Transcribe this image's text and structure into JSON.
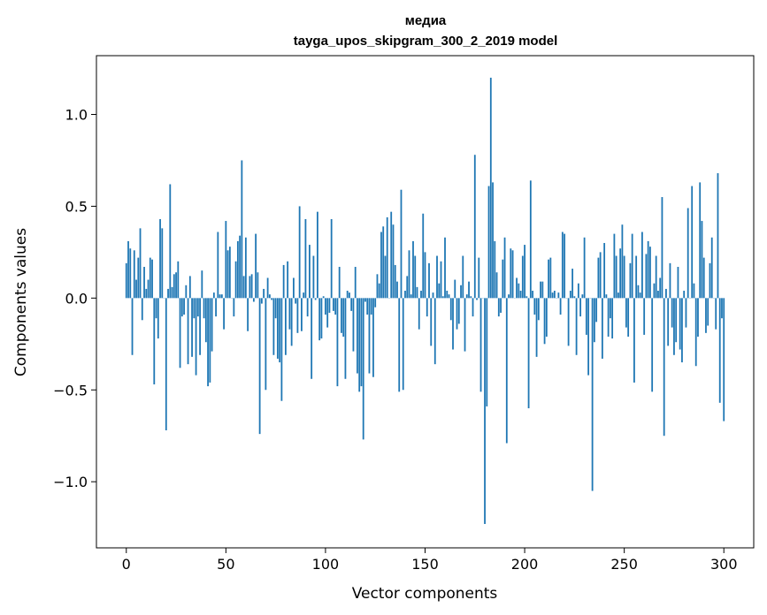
{
  "chart_data": {
    "type": "bar",
    "title": "медиа",
    "subtitle": "tayga_upos_skipgram_300_2_2019 model",
    "xlabel": "Vector components",
    "ylabel": "Components values",
    "xlim": [
      -15,
      315
    ],
    "ylim": [
      -1.36,
      1.32
    ],
    "xticks": [
      0,
      50,
      100,
      150,
      200,
      250,
      300
    ],
    "xtick_labels": [
      "0",
      "50",
      "100",
      "150",
      "200",
      "250",
      "300"
    ],
    "yticks": [
      -1.0,
      -0.5,
      0.0,
      0.5,
      1.0
    ],
    "ytick_labels": [
      "−1.0",
      "−0.5",
      "0.0",
      "0.5",
      "1.0"
    ],
    "grid": false,
    "bar_color": "#1f77b4",
    "values": [
      0.19,
      0.31,
      0.27,
      -0.31,
      0.26,
      0.1,
      0.22,
      0.38,
      -0.12,
      0.17,
      0.05,
      0.1,
      0.22,
      0.21,
      -0.47,
      -0.11,
      -0.22,
      0.43,
      0.38,
      0.0,
      -0.72,
      0.05,
      0.62,
      0.06,
      0.13,
      0.14,
      0.2,
      -0.38,
      -0.1,
      -0.09,
      0.07,
      -0.36,
      0.12,
      -0.32,
      -0.11,
      -0.42,
      -0.1,
      -0.31,
      0.15,
      -0.11,
      -0.24,
      -0.48,
      -0.46,
      -0.29,
      0.03,
      -0.1,
      0.36,
      0.02,
      0.02,
      -0.17,
      0.42,
      0.26,
      0.28,
      0.0,
      -0.1,
      0.2,
      0.31,
      0.34,
      0.75,
      0.12,
      0.33,
      -0.18,
      0.12,
      0.13,
      -0.02,
      0.35,
      0.14,
      -0.74,
      -0.03,
      0.05,
      -0.5,
      0.11,
      0.02,
      -0.01,
      -0.31,
      -0.11,
      -0.33,
      -0.35,
      -0.56,
      0.18,
      -0.31,
      0.2,
      -0.17,
      -0.26,
      0.11,
      -0.03,
      -0.19,
      0.5,
      -0.18,
      0.03,
      0.43,
      -0.1,
      0.29,
      -0.44,
      0.23,
      -0.01,
      0.47,
      -0.23,
      -0.22,
      0.01,
      -0.09,
      -0.16,
      -0.08,
      0.43,
      -0.07,
      -0.09,
      -0.48,
      0.17,
      -0.19,
      -0.21,
      -0.44,
      0.04,
      0.03,
      -0.07,
      -0.29,
      0.17,
      -0.41,
      -0.51,
      -0.48,
      -0.77,
      -0.02,
      -0.09,
      -0.41,
      -0.09,
      -0.43,
      -0.05,
      0.13,
      0.08,
      0.36,
      0.39,
      0.23,
      0.44,
      0.0,
      0.47,
      0.4,
      0.18,
      0.09,
      -0.51,
      0.59,
      -0.5,
      0.04,
      0.12,
      0.26,
      0.02,
      0.31,
      0.23,
      0.06,
      -0.17,
      0.04,
      0.46,
      0.25,
      -0.1,
      0.19,
      -0.26,
      0.03,
      -0.36,
      0.23,
      0.08,
      0.2,
      0.01,
      0.33,
      0.04,
      0.02,
      -0.12,
      -0.28,
      0.1,
      -0.17,
      -0.14,
      0.07,
      0.23,
      -0.29,
      0.02,
      0.09,
      0.01,
      -0.1,
      0.78,
      -0.01,
      0.22,
      -0.51,
      0.0,
      -1.23,
      -0.59,
      0.61,
      1.2,
      0.63,
      0.31,
      0.14,
      -0.1,
      -0.08,
      0.21,
      0.33,
      -0.79,
      0.02,
      0.27,
      0.26,
      0.0,
      0.11,
      0.08,
      0.04,
      0.23,
      0.29,
      0.01,
      -0.6,
      0.64,
      0.04,
      -0.09,
      -0.32,
      -0.12,
      0.09,
      0.09,
      -0.25,
      -0.21,
      0.21,
      0.22,
      0.03,
      0.04,
      0.0,
      0.03,
      -0.09,
      0.36,
      0.35,
      0.0,
      -0.26,
      0.04,
      0.16,
      0.01,
      -0.31,
      0.08,
      -0.1,
      0.02,
      0.33,
      -0.2,
      -0.42,
      0.0,
      -1.05,
      -0.24,
      -0.13,
      0.22,
      0.25,
      -0.33,
      0.3,
      0.02,
      -0.21,
      -0.11,
      -0.22,
      0.35,
      0.23,
      0.03,
      0.27,
      0.4,
      0.23,
      -0.16,
      -0.21,
      0.19,
      0.35,
      -0.46,
      0.23,
      0.07,
      0.03,
      0.36,
      -0.2,
      0.24,
      0.31,
      0.28,
      -0.51,
      0.08,
      0.23,
      0.04,
      0.11,
      0.55,
      -0.75,
      0.05,
      -0.26,
      0.19,
      -0.16,
      -0.31,
      -0.24,
      0.17,
      -0.28,
      -0.35,
      0.04,
      -0.16,
      0.49,
      0.0,
      0.61,
      0.08,
      -0.37,
      -0.21,
      0.63,
      0.42,
      0.22,
      -0.19,
      -0.15,
      0.19,
      0.33,
      0.0,
      -0.17,
      0.68,
      -0.57,
      -0.11,
      -0.67
    ]
  }
}
